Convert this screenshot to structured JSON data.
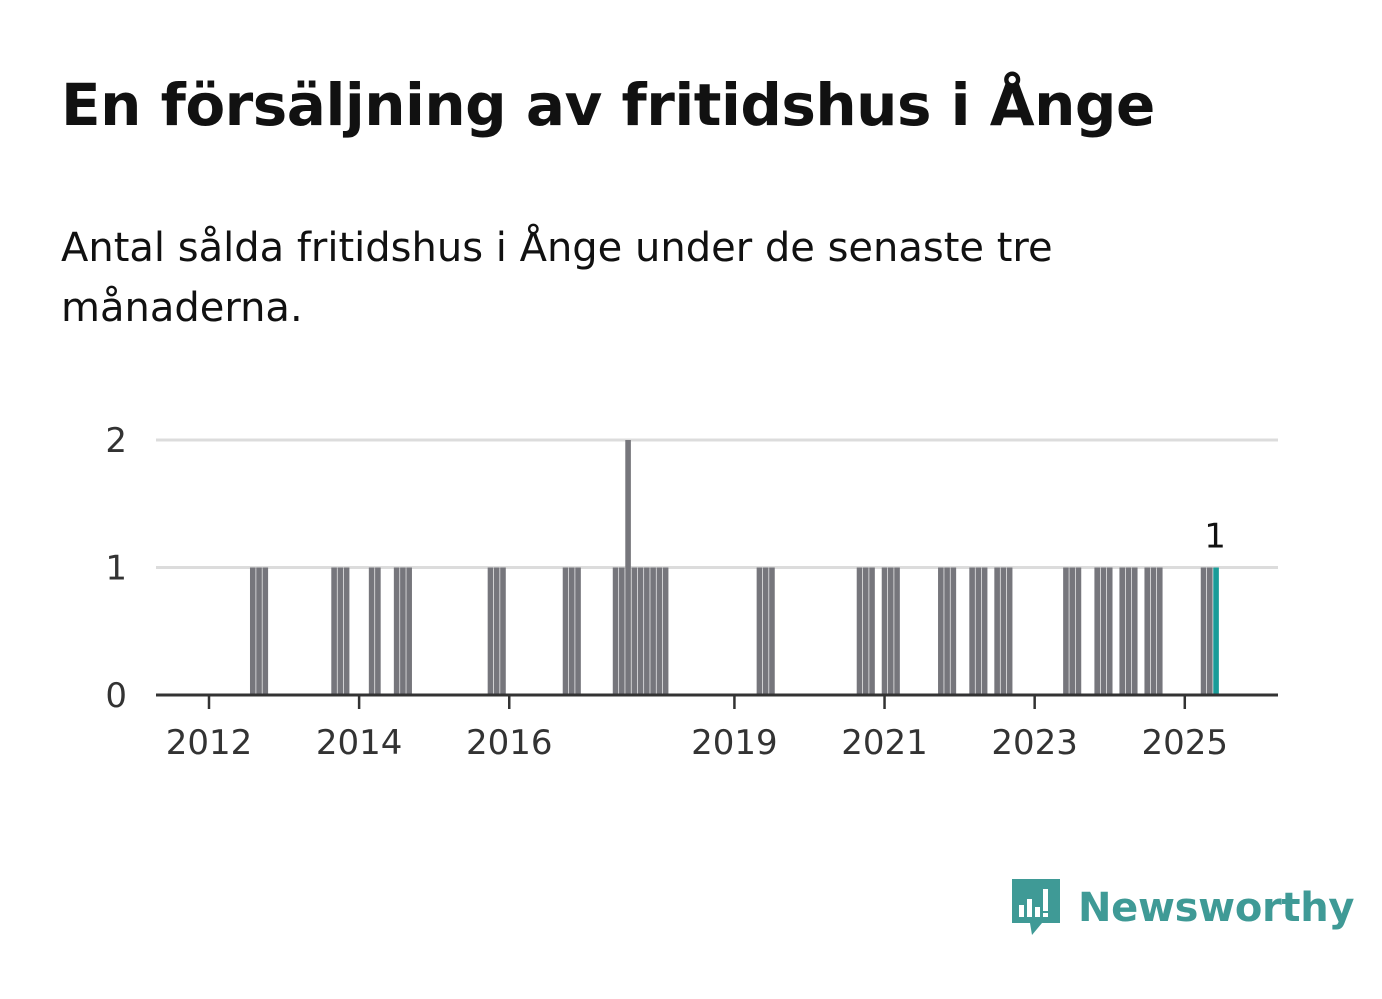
{
  "title": "En försäljning av fritidshus i Ånge",
  "subtitle": "Antal sålda fritidshus i Ånge under de senaste tre månaderna.",
  "brand": {
    "name": "Newsworthy",
    "icon": "newsworthy-logo-icon",
    "color": "#3f9a96"
  },
  "chart_data": {
    "type": "bar",
    "title": "",
    "xlabel": "",
    "ylabel": "",
    "ylim": [
      0,
      2
    ],
    "y_ticks": [
      0,
      1,
      2
    ],
    "x_ticks": [
      "2012",
      "2014",
      "2016",
      "2019",
      "2021",
      "2023",
      "2025"
    ],
    "grid": true,
    "legend": "none",
    "bar_color": "#76767c",
    "highlight_color": "#1a9c98",
    "series": [
      {
        "values_by_period": [
          {
            "x": "2012-08",
            "y": 1
          },
          {
            "x": "2012-09",
            "y": 1
          },
          {
            "x": "2012-10",
            "y": 1
          },
          {
            "x": "2013-09",
            "y": 1
          },
          {
            "x": "2013-10",
            "y": 1
          },
          {
            "x": "2013-11",
            "y": 1
          },
          {
            "x": "2014-03",
            "y": 1
          },
          {
            "x": "2014-04",
            "y": 1
          },
          {
            "x": "2014-07",
            "y": 1
          },
          {
            "x": "2014-08",
            "y": 1
          },
          {
            "x": "2014-09",
            "y": 1
          },
          {
            "x": "2015-10",
            "y": 1
          },
          {
            "x": "2015-11",
            "y": 1
          },
          {
            "x": "2015-12",
            "y": 1
          },
          {
            "x": "2016-10",
            "y": 1
          },
          {
            "x": "2016-11",
            "y": 1
          },
          {
            "x": "2016-12",
            "y": 1
          },
          {
            "x": "2017-06",
            "y": 1
          },
          {
            "x": "2017-07",
            "y": 1
          },
          {
            "x": "2017-08",
            "y": 2
          },
          {
            "x": "2017-09",
            "y": 1
          },
          {
            "x": "2017-10",
            "y": 1
          },
          {
            "x": "2017-11",
            "y": 1
          },
          {
            "x": "2017-12",
            "y": 1
          },
          {
            "x": "2018-01",
            "y": 1
          },
          {
            "x": "2018-02",
            "y": 1
          },
          {
            "x": "2019-05",
            "y": 1
          },
          {
            "x": "2019-06",
            "y": 1
          },
          {
            "x": "2019-07",
            "y": 1
          },
          {
            "x": "2020-09",
            "y": 1
          },
          {
            "x": "2020-10",
            "y": 1
          },
          {
            "x": "2020-11",
            "y": 1
          },
          {
            "x": "2021-01",
            "y": 1
          },
          {
            "x": "2021-02",
            "y": 1
          },
          {
            "x": "2021-03",
            "y": 1
          },
          {
            "x": "2021-10",
            "y": 1
          },
          {
            "x": "2021-11",
            "y": 1
          },
          {
            "x": "2021-12",
            "y": 1
          },
          {
            "x": "2022-03",
            "y": 1
          },
          {
            "x": "2022-04",
            "y": 1
          },
          {
            "x": "2022-05",
            "y": 1
          },
          {
            "x": "2022-07",
            "y": 1
          },
          {
            "x": "2022-08",
            "y": 1
          },
          {
            "x": "2022-09",
            "y": 1
          },
          {
            "x": "2023-06",
            "y": 1
          },
          {
            "x": "2023-07",
            "y": 1
          },
          {
            "x": "2023-08",
            "y": 1
          },
          {
            "x": "2023-11",
            "y": 1
          },
          {
            "x": "2023-12",
            "y": 1
          },
          {
            "x": "2024-01",
            "y": 1
          },
          {
            "x": "2024-03",
            "y": 1
          },
          {
            "x": "2024-04",
            "y": 1
          },
          {
            "x": "2024-05",
            "y": 1
          },
          {
            "x": "2024-07",
            "y": 1
          },
          {
            "x": "2024-08",
            "y": 1
          },
          {
            "x": "2024-09",
            "y": 1
          },
          {
            "x": "2025-04",
            "y": 1
          },
          {
            "x": "2025-05",
            "y": 1
          },
          {
            "x": "2025-06",
            "y": 1
          }
        ]
      }
    ],
    "highlight": {
      "x": "2025-06",
      "label": "1"
    }
  }
}
